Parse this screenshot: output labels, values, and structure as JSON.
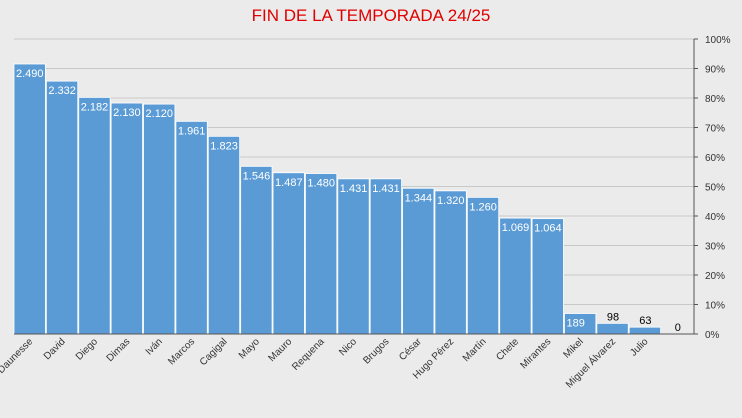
{
  "chart_data": {
    "type": "bar",
    "title": "FIN DE LA TEMPORADA 24/25",
    "categories": [
      "Daunesse",
      "David",
      "Diego",
      "Dimas",
      "Iván",
      "Marcos",
      "Cagigal",
      "Mayo",
      "Mauro",
      "Requena",
      "Nico",
      "Brugos",
      "César",
      "Hugo Pérez",
      "Martín",
      "Chete",
      "Mirantes",
      "Mikel",
      "Miguel Álvarez",
      "Julio",
      ""
    ],
    "values": [
      2490,
      2332,
      2182,
      2130,
      2120,
      1961,
      1823,
      1546,
      1487,
      1480,
      1431,
      1431,
      1344,
      1320,
      1260,
      1069,
      1064,
      189,
      98,
      63,
      0
    ],
    "value_labels": [
      "2.490",
      "2.332",
      "2.182",
      "2.130",
      "2.120",
      "1.961",
      "1.823",
      "1.546",
      "1.487",
      "1.480",
      "1.431",
      "1.431",
      "1.344",
      "1.320",
      "1.260",
      "1.069",
      "1.064",
      "189",
      "98",
      "63",
      "0"
    ],
    "y_axis_max_value": 2490,
    "secondary_axis": {
      "position": "right",
      "ticks": [
        "0%",
        "10%",
        "20%",
        "30%",
        "40%",
        "50%",
        "60%",
        "70%",
        "80%",
        "90%",
        "100%"
      ]
    },
    "grid": true,
    "bar_color": "#5b9bd5",
    "title_color": "#e00000",
    "background_color": "#ebebeb"
  }
}
